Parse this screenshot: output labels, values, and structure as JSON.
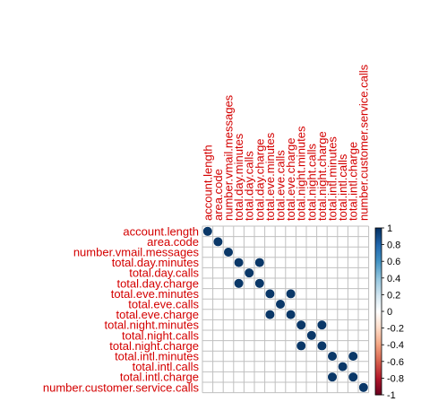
{
  "chart_data": {
    "type": "heatmap",
    "title": "",
    "variables": [
      "account.length",
      "area.code",
      "number.vmail.messages",
      "total.day.minutes",
      "total.day.calls",
      "total.day.charge",
      "total.eve.minutes",
      "total.eve.calls",
      "total.eve.charge",
      "total.night.minutes",
      "total.night.calls",
      "total.night.charge",
      "total.intl.minutes",
      "total.intl.calls",
      "total.intl.charge",
      "number.customer.service.calls"
    ],
    "matrix": [
      [
        1,
        0,
        0,
        0,
        0,
        0,
        0,
        0,
        0,
        0,
        0,
        0,
        0,
        0,
        0,
        0
      ],
      [
        0,
        1,
        0,
        0,
        0,
        0,
        0,
        0,
        0,
        0,
        0,
        0,
        0,
        0,
        0,
        0
      ],
      [
        0,
        0,
        1,
        0,
        0,
        0,
        0,
        0,
        0,
        0,
        0,
        0,
        0,
        0,
        0,
        0
      ],
      [
        0,
        0,
        0,
        1,
        0,
        1,
        0,
        0,
        0,
        0,
        0,
        0,
        0,
        0,
        0,
        0
      ],
      [
        0,
        0,
        0,
        0,
        1,
        0,
        0,
        0,
        0,
        0,
        0,
        0,
        0,
        0,
        0,
        0
      ],
      [
        0,
        0,
        0,
        1,
        0,
        1,
        0,
        0,
        0,
        0,
        0,
        0,
        0,
        0,
        0,
        0
      ],
      [
        0,
        0,
        0,
        0,
        0,
        0,
        1,
        0,
        1,
        0,
        0,
        0,
        0,
        0,
        0,
        0
      ],
      [
        0,
        0,
        0,
        0,
        0,
        0,
        0,
        1,
        0,
        0,
        0,
        0,
        0,
        0,
        0,
        0
      ],
      [
        0,
        0,
        0,
        0,
        0,
        0,
        1,
        0,
        1,
        0,
        0,
        0,
        0,
        0,
        0,
        0
      ],
      [
        0,
        0,
        0,
        0,
        0,
        0,
        0,
        0,
        0,
        1,
        0,
        1,
        0,
        0,
        0,
        0
      ],
      [
        0,
        0,
        0,
        0,
        0,
        0,
        0,
        0,
        0,
        0,
        1,
        0,
        0,
        0,
        0,
        0
      ],
      [
        0,
        0,
        0,
        0,
        0,
        0,
        0,
        0,
        0,
        1,
        0,
        1,
        0,
        0,
        0,
        0
      ],
      [
        0,
        0,
        0,
        0,
        0,
        0,
        0,
        0,
        0,
        0,
        0,
        0,
        1,
        0,
        1,
        0
      ],
      [
        0,
        0,
        0,
        0,
        0,
        0,
        0,
        0,
        0,
        0,
        0,
        0,
        0,
        1,
        0,
        0
      ],
      [
        0,
        0,
        0,
        0,
        0,
        0,
        0,
        0,
        0,
        0,
        0,
        0,
        1,
        0,
        1,
        0
      ],
      [
        0,
        0,
        0,
        0,
        0,
        0,
        0,
        0,
        0,
        0,
        0,
        0,
        0,
        0,
        0,
        1
      ]
    ],
    "colorbar": {
      "ticks": [
        "1",
        "0.8",
        "0.6",
        "0.4",
        "0.2",
        "0",
        "-0.2",
        "-0.4",
        "-0.6",
        "-0.8",
        "-1"
      ],
      "range": [
        -1,
        1
      ],
      "colors_high_to_low": [
        "#053061",
        "#2166ac",
        "#4393c3",
        "#92c5de",
        "#d1e5f0",
        "#ffffff",
        "#fddbc7",
        "#f4a582",
        "#d6604d",
        "#b2182b",
        "#67001f"
      ]
    },
    "label_color": "#d40000",
    "grid_color": "#c0c0c0",
    "point_color": "#0b3868"
  }
}
